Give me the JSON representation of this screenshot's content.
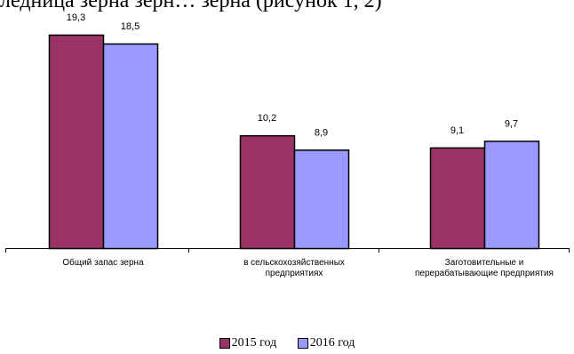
{
  "page": {
    "cropped_text": "ледница зерна зерн… зерна (рисунок 1, 2)"
  },
  "chart_data": {
    "type": "bar",
    "categories": [
      [
        "Общий запас зерна"
      ],
      [
        "в сельскохозяйственных",
        "предприятиях"
      ],
      [
        "Заготовительные и",
        "перерабатывающие предприятия"
      ]
    ],
    "series": [
      {
        "name": "2015 год",
        "values": [
          19.3,
          10.2,
          9.1
        ],
        "labels": [
          "19,3",
          "10,2",
          "9,1"
        ],
        "color": "#993366"
      },
      {
        "name": "2016 год",
        "values": [
          18.5,
          8.9,
          9.7
        ],
        "labels": [
          "18,5",
          "8,9",
          "9,7"
        ],
        "color": "#9999ff"
      }
    ],
    "ylim": [
      0,
      19.3
    ],
    "grid": false,
    "legend": "bottom"
  }
}
